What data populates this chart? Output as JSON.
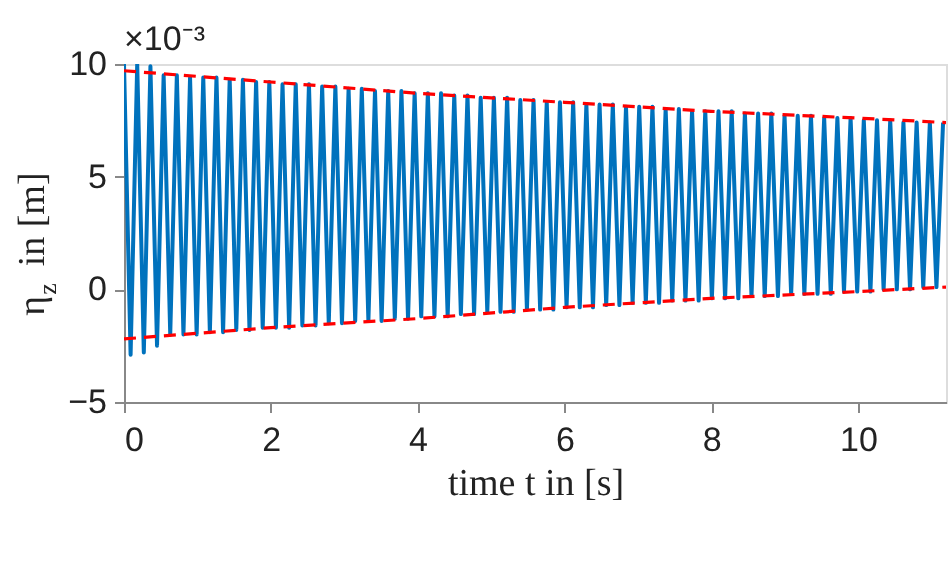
{
  "chart_data": {
    "type": "line",
    "xlabel": "time t in [s]",
    "ylabel": "η$_{z}$ in [m]",
    "annotations": [
      "×10⁻³"
    ],
    "xlim": [
      0,
      11.2
    ],
    "xticks": [
      0,
      2,
      4,
      6,
      8,
      10
    ],
    "ylim": [
      -5,
      10
    ],
    "yticks": [
      -5,
      0,
      5,
      10
    ],
    "grid": false,
    "series": [
      {
        "color": "#0072bd",
        "line_style": "solid",
        "x": [
          0,
          0.09,
          0.18,
          0.27,
          0.36,
          0.45,
          0.54,
          0.63,
          0.72,
          0.81,
          0.9,
          0.99,
          1.08,
          1.17,
          1.26,
          1.35,
          1.44,
          1.53,
          1.62,
          1.71,
          1.8,
          1.89,
          1.98,
          2.07,
          2.16,
          2.25,
          2.34,
          2.43,
          2.52,
          2.61,
          2.7,
          2.79,
          2.88,
          2.97,
          3.06,
          3.15,
          3.24,
          3.33,
          3.42,
          3.51,
          3.6,
          3.69,
          3.78,
          3.87,
          3.96,
          4.05,
          4.14,
          4.23,
          4.32,
          4.41,
          4.5,
          4.59,
          4.68,
          4.77,
          4.86,
          4.95,
          5.04,
          5.13,
          5.22,
          5.31,
          5.4,
          5.49,
          5.58,
          5.67,
          5.76,
          5.85,
          5.94,
          6.03,
          6.12,
          6.21,
          6.3,
          6.39,
          6.48,
          6.57,
          6.66,
          6.75,
          6.84,
          6.93,
          7.02,
          7.11,
          7.2,
          7.29,
          7.38,
          7.47,
          7.56,
          7.65,
          7.74,
          7.83,
          7.92,
          8.01,
          8.1,
          8.19,
          8.28,
          8.37,
          8.46,
          8.55,
          8.64,
          8.73,
          8.82,
          8.91,
          9.0,
          9.09,
          9.18,
          9.27,
          9.36,
          9.45,
          9.54,
          9.63,
          9.72,
          9.81,
          9.9,
          9.99,
          10.08,
          10.17,
          10.26,
          10.35,
          10.44,
          10.53,
          10.62,
          10.71,
          10.8,
          10.89,
          10.98,
          11.07,
          11.16
        ],
        "values": [
          10.0,
          -2.9,
          10.0,
          -2.8,
          9.9,
          -2.5,
          9.5,
          -2.0,
          9.5,
          -2.0,
          9.4,
          -2.0,
          9.4,
          -1.9,
          9.4,
          -1.9,
          9.3,
          -1.8,
          9.3,
          -1.8,
          9.2,
          -1.7,
          9.2,
          -1.7,
          9.1,
          -1.7,
          9.1,
          -1.6,
          9.1,
          -1.6,
          9.0,
          -1.5,
          9.0,
          -1.5,
          8.9,
          -1.4,
          8.9,
          -1.4,
          8.8,
          -1.4,
          8.8,
          -1.3,
          8.8,
          -1.3,
          8.7,
          -1.2,
          8.7,
          -1.2,
          8.7,
          -1.2,
          8.6,
          -1.1,
          8.6,
          -1.1,
          8.5,
          -1.0,
          8.5,
          -1.0,
          8.5,
          -1.0,
          8.4,
          -0.9,
          8.4,
          -0.9,
          8.3,
          -0.9,
          8.3,
          -0.8,
          8.3,
          -0.8,
          8.2,
          -0.8,
          8.2,
          -0.7,
          8.2,
          -0.7,
          8.1,
          -0.6,
          8.1,
          -0.6,
          8.1,
          -0.6,
          8.0,
          -0.5,
          8.0,
          -0.5,
          7.9,
          -0.5,
          7.9,
          -0.4,
          7.9,
          -0.4,
          7.9,
          -0.4,
          7.8,
          -0.3,
          7.8,
          -0.3,
          7.8,
          -0.3,
          7.7,
          -0.2,
          7.7,
          -0.2,
          7.7,
          -0.2,
          7.6,
          -0.2,
          7.6,
          -0.1,
          7.6,
          -0.1,
          7.5,
          -0.1,
          7.5,
          0.0,
          7.5,
          0.0,
          7.4,
          0.0,
          7.4,
          0.1,
          7.4,
          0.1,
          7.4
        ]
      },
      {
        "color": "#ff0000",
        "line_style": "dashed",
        "x": [
          0,
          2,
          4,
          6,
          8,
          10,
          11.2
        ],
        "values": [
          9.7,
          9.2,
          8.7,
          8.3,
          7.9,
          7.6,
          7.4
        ]
      },
      {
        "color": "#ff0000",
        "line_style": "dashed",
        "x": [
          0,
          2,
          4,
          6,
          8,
          10,
          11.2
        ],
        "values": [
          -2.2,
          -1.7,
          -1.3,
          -0.8,
          -0.4,
          -0.1,
          0.1
        ]
      }
    ]
  }
}
